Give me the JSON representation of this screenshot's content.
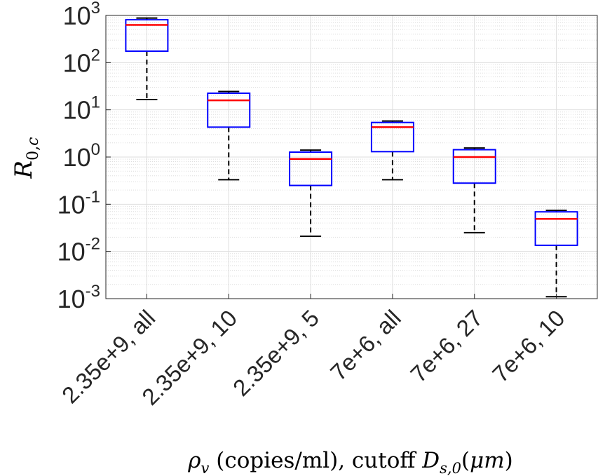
{
  "chart_data": {
    "type": "box",
    "title": "",
    "xlabel": "ρ_v (copies/ml), cutoff D_s,0(μm)",
    "ylabel": "R_0,c",
    "yscale": "log",
    "ylim": [
      0.001,
      1000
    ],
    "yticks": [
      {
        "value": 0.001,
        "base": "10",
        "exp": "-3"
      },
      {
        "value": 0.01,
        "base": "10",
        "exp": "-2"
      },
      {
        "value": 0.1,
        "base": "10",
        "exp": "-1"
      },
      {
        "value": 1,
        "base": "10",
        "exp": "0"
      },
      {
        "value": 10,
        "base": "10",
        "exp": "1"
      },
      {
        "value": 100,
        "base": "10",
        "exp": "2"
      },
      {
        "value": 1000,
        "base": "10",
        "exp": "3"
      }
    ],
    "grid": true,
    "minor_grid": true,
    "categories": [
      "2.35e+9, all",
      "2.35e+9, 10",
      "2.35e+9, 5",
      "7e+6, all",
      "7e+6, 27",
      "7e+6, 10"
    ],
    "boxes": [
      {
        "whisker_low": 16.5,
        "q1": 175,
        "median": 630,
        "q3": 810,
        "whisker_high": 880
      },
      {
        "whisker_low": 0.33,
        "q1": 4.3,
        "median": 15.9,
        "q3": 22.5,
        "whisker_high": 24.5
      },
      {
        "whisker_low": 0.021,
        "q1": 0.25,
        "median": 0.91,
        "q3": 1.27,
        "whisker_high": 1.4
      },
      {
        "whisker_low": 0.33,
        "q1": 1.3,
        "median": 4.3,
        "q3": 5.4,
        "whisker_high": 5.8
      },
      {
        "whisker_low": 0.025,
        "q1": 0.28,
        "median": 1.0,
        "q3": 1.43,
        "whisker_high": 1.55
      },
      {
        "whisker_low": 0.0011,
        "q1": 0.0135,
        "median": 0.049,
        "q3": 0.069,
        "whisker_high": 0.074
      }
    ],
    "colors": {
      "box": "#0000ff",
      "median": "#ff0000",
      "whisker": "#000000",
      "grid": "#dedede",
      "axis": "#262626"
    }
  }
}
